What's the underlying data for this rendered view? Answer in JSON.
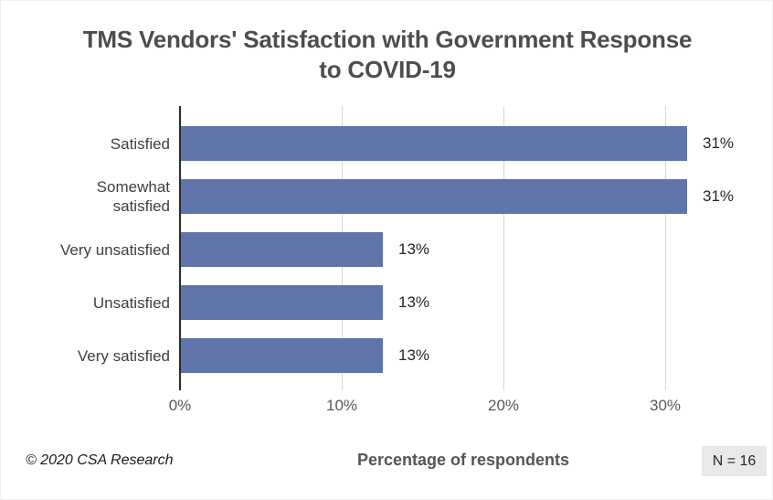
{
  "chart_data": {
    "type": "bar",
    "orientation": "horizontal",
    "title": "TMS Vendors' Satisfaction with Government Response to COVID-19",
    "title_lines": [
      "TMS Vendors' Satisfaction with Government Response",
      "to COVID-19"
    ],
    "categories": [
      "Satisfied",
      "Somewhat satisfied",
      "Very unsatisfied",
      "Unsatisfied",
      "Very satisfied"
    ],
    "values": [
      31.25,
      31.25,
      12.5,
      12.5,
      12.5
    ],
    "data_labels": [
      "31%",
      "31%",
      "13%",
      "13%",
      "13%"
    ],
    "xlabel": "Percentage of respondents",
    "x_ticks": [
      {
        "value": 0,
        "label": "0%"
      },
      {
        "value": 10,
        "label": "10%"
      },
      {
        "value": 20,
        "label": "20%"
      },
      {
        "value": 30,
        "label": "30%"
      }
    ],
    "xlim": [
      0,
      35
    ],
    "grid": "vertical-major",
    "legend": "none",
    "bar_color": "#5F74A9",
    "gridline_color": "#D6D6D6",
    "axis_line_color": "#2B2B2B"
  },
  "footer": {
    "copyright": "© 2020 CSA Research",
    "sample_size": "N = 16"
  }
}
